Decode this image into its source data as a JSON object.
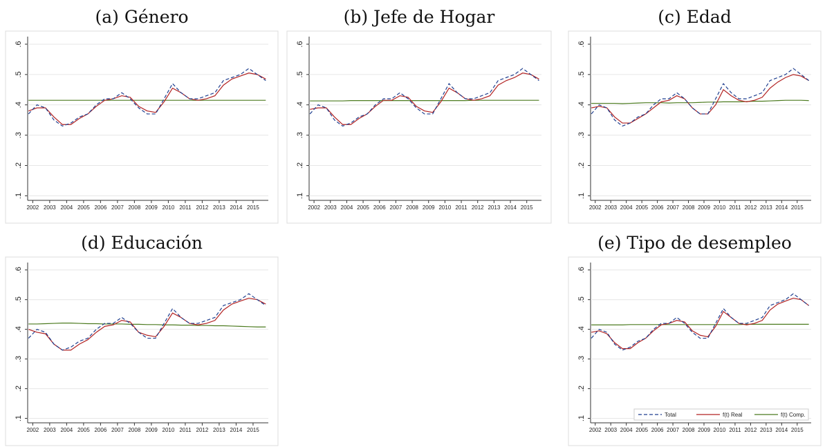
{
  "chart_data": [
    {
      "type": "line",
      "title": "(a) Género",
      "x": [
        2001.75,
        2002.25,
        2002.75,
        2003.25,
        2003.75,
        2004.25,
        2004.75,
        2005.25,
        2005.75,
        2006.25,
        2006.75,
        2007.25,
        2007.75,
        2008.25,
        2008.75,
        2009.25,
        2009.75,
        2010.25,
        2010.75,
        2011.25,
        2011.75,
        2012.25,
        2012.75,
        2013.25,
        2013.75,
        2014.25,
        2014.75,
        2015.25,
        2015.75
      ],
      "series": [
        {
          "name": "Total",
          "color": "#1f3f8f",
          "dash": true,
          "values": [
            0.37,
            0.4,
            0.39,
            0.35,
            0.33,
            0.34,
            0.36,
            0.37,
            0.4,
            0.42,
            0.42,
            0.44,
            0.42,
            0.39,
            0.37,
            0.37,
            0.42,
            0.47,
            0.44,
            0.42,
            0.42,
            0.43,
            0.44,
            0.48,
            0.49,
            0.5,
            0.52,
            0.5,
            0.48
          ]
        },
        {
          "name": "f(t) Real",
          "color": "#b22222",
          "dash": false,
          "values": [
            0.38,
            0.39,
            0.39,
            0.36,
            0.335,
            0.335,
            0.355,
            0.37,
            0.395,
            0.415,
            0.42,
            0.43,
            0.425,
            0.395,
            0.38,
            0.375,
            0.41,
            0.455,
            0.44,
            0.42,
            0.415,
            0.42,
            0.43,
            0.465,
            0.485,
            0.495,
            0.505,
            0.5,
            0.485
          ]
        },
        {
          "name": "f(t) Comp.",
          "color": "#4b7a1e",
          "dash": false,
          "values": [
            0.415,
            0.415,
            0.415,
            0.415,
            0.415,
            0.415,
            0.415,
            0.415,
            0.415,
            0.415,
            0.415,
            0.415,
            0.415,
            0.415,
            0.415,
            0.415,
            0.415,
            0.415,
            0.415,
            0.415,
            0.415,
            0.415,
            0.415,
            0.415,
            0.415,
            0.415,
            0.415,
            0.415,
            0.415
          ]
        }
      ],
      "xlim": [
        2001.7,
        2015.9
      ],
      "xticks": [
        2002,
        2003,
        2004,
        2005,
        2006,
        2007,
        2008,
        2009,
        2010,
        2011,
        2012,
        2013,
        2014,
        2015
      ],
      "ylim": [
        0.085,
        0.625
      ],
      "yticks": [
        {
          "value": 0.1,
          "label": ".1"
        },
        {
          "value": 0.2,
          "label": ".2"
        },
        {
          "value": 0.3,
          "label": ".3"
        },
        {
          "value": 0.4,
          "label": ".4"
        },
        {
          "value": 0.5,
          "label": ".5"
        },
        {
          "value": 0.6,
          "label": ".6"
        }
      ],
      "grid": true
    },
    {
      "type": "line",
      "title": "(b) Jefe de Hogar",
      "x": [
        2001.75,
        2002.25,
        2002.75,
        2003.25,
        2003.75,
        2004.25,
        2004.75,
        2005.25,
        2005.75,
        2006.25,
        2006.75,
        2007.25,
        2007.75,
        2008.25,
        2008.75,
        2009.25,
        2009.75,
        2010.25,
        2010.75,
        2011.25,
        2011.75,
        2012.25,
        2012.75,
        2013.25,
        2013.75,
        2014.25,
        2014.75,
        2015.25,
        2015.75
      ],
      "series": [
        {
          "name": "Total",
          "color": "#1f3f8f",
          "dash": true,
          "values": [
            0.37,
            0.4,
            0.39,
            0.35,
            0.33,
            0.34,
            0.36,
            0.37,
            0.4,
            0.42,
            0.42,
            0.44,
            0.42,
            0.39,
            0.37,
            0.37,
            0.42,
            0.47,
            0.44,
            0.42,
            0.42,
            0.43,
            0.44,
            0.48,
            0.49,
            0.5,
            0.52,
            0.5,
            0.48
          ]
        },
        {
          "name": "f(t) Real",
          "color": "#b22222",
          "dash": false,
          "values": [
            0.385,
            0.39,
            0.39,
            0.36,
            0.335,
            0.335,
            0.355,
            0.37,
            0.395,
            0.415,
            0.415,
            0.43,
            0.425,
            0.395,
            0.38,
            0.375,
            0.41,
            0.455,
            0.44,
            0.42,
            0.415,
            0.42,
            0.43,
            0.465,
            0.48,
            0.49,
            0.505,
            0.5,
            0.485
          ]
        },
        {
          "name": "f(t) Comp.",
          "color": "#4b7a1e",
          "dash": false,
          "values": [
            0.413,
            0.413,
            0.413,
            0.413,
            0.413,
            0.414,
            0.414,
            0.414,
            0.414,
            0.414,
            0.414,
            0.414,
            0.414,
            0.414,
            0.414,
            0.414,
            0.414,
            0.414,
            0.414,
            0.414,
            0.415,
            0.415,
            0.415,
            0.415,
            0.415,
            0.415,
            0.415,
            0.415,
            0.415
          ]
        }
      ],
      "xlim": [
        2001.7,
        2015.9
      ],
      "xticks": [
        2002,
        2003,
        2004,
        2005,
        2006,
        2007,
        2008,
        2009,
        2010,
        2011,
        2012,
        2013,
        2014,
        2015
      ],
      "ylim": [
        0.085,
        0.625
      ],
      "yticks": [
        {
          "value": 0.1,
          "label": ".1"
        },
        {
          "value": 0.2,
          "label": ".2"
        },
        {
          "value": 0.3,
          "label": ".3"
        },
        {
          "value": 0.4,
          "label": ".4"
        },
        {
          "value": 0.5,
          "label": ".5"
        },
        {
          "value": 0.6,
          "label": ".6"
        }
      ],
      "grid": true
    },
    {
      "type": "line",
      "title": "(c) Edad",
      "x": [
        2001.75,
        2002.25,
        2002.75,
        2003.25,
        2003.75,
        2004.25,
        2004.75,
        2005.25,
        2005.75,
        2006.25,
        2006.75,
        2007.25,
        2007.75,
        2008.25,
        2008.75,
        2009.25,
        2009.75,
        2010.25,
        2010.75,
        2011.25,
        2011.75,
        2012.25,
        2012.75,
        2013.25,
        2013.75,
        2014.25,
        2014.75,
        2015.25,
        2015.75
      ],
      "series": [
        {
          "name": "Total",
          "color": "#1f3f8f",
          "dash": true,
          "values": [
            0.37,
            0.4,
            0.39,
            0.35,
            0.33,
            0.34,
            0.36,
            0.37,
            0.4,
            0.42,
            0.42,
            0.44,
            0.42,
            0.39,
            0.37,
            0.37,
            0.42,
            0.47,
            0.44,
            0.42,
            0.42,
            0.43,
            0.44,
            0.48,
            0.49,
            0.5,
            0.52,
            0.5,
            0.48
          ]
        },
        {
          "name": "f(t) Real",
          "color": "#b22222",
          "dash": false,
          "values": [
            0.39,
            0.395,
            0.39,
            0.36,
            0.34,
            0.34,
            0.355,
            0.37,
            0.39,
            0.41,
            0.415,
            0.43,
            0.42,
            0.39,
            0.37,
            0.37,
            0.4,
            0.45,
            0.43,
            0.415,
            0.41,
            0.415,
            0.425,
            0.455,
            0.475,
            0.49,
            0.5,
            0.495,
            0.48
          ]
        },
        {
          "name": "f(t) Comp.",
          "color": "#4b7a1e",
          "dash": false,
          "values": [
            0.405,
            0.405,
            0.405,
            0.405,
            0.404,
            0.405,
            0.406,
            0.407,
            0.407,
            0.407,
            0.406,
            0.407,
            0.407,
            0.407,
            0.408,
            0.409,
            0.409,
            0.41,
            0.41,
            0.41,
            0.411,
            0.412,
            0.412,
            0.413,
            0.414,
            0.415,
            0.415,
            0.415,
            0.414
          ]
        }
      ],
      "xlim": [
        2001.7,
        2015.9
      ],
      "xticks": [
        2002,
        2003,
        2004,
        2005,
        2006,
        2007,
        2008,
        2009,
        2010,
        2011,
        2012,
        2013,
        2014,
        2015
      ],
      "ylim": [
        0.085,
        0.625
      ],
      "yticks": [
        {
          "value": 0.1,
          "label": ".1"
        },
        {
          "value": 0.2,
          "label": ".2"
        },
        {
          "value": 0.3,
          "label": ".3"
        },
        {
          "value": 0.4,
          "label": ".4"
        },
        {
          "value": 0.5,
          "label": ".5"
        },
        {
          "value": 0.6,
          "label": ".6"
        }
      ],
      "grid": true
    },
    {
      "type": "line",
      "title": "(d) Educación",
      "x": [
        2001.75,
        2002.25,
        2002.75,
        2003.25,
        2003.75,
        2004.25,
        2004.75,
        2005.25,
        2005.75,
        2006.25,
        2006.75,
        2007.25,
        2007.75,
        2008.25,
        2008.75,
        2009.25,
        2009.75,
        2010.25,
        2010.75,
        2011.25,
        2011.75,
        2012.25,
        2012.75,
        2013.25,
        2013.75,
        2014.25,
        2014.75,
        2015.25,
        2015.75
      ],
      "series": [
        {
          "name": "Total",
          "color": "#1f3f8f",
          "dash": true,
          "values": [
            0.37,
            0.4,
            0.39,
            0.35,
            0.33,
            0.34,
            0.36,
            0.37,
            0.4,
            0.42,
            0.42,
            0.44,
            0.42,
            0.39,
            0.37,
            0.37,
            0.42,
            0.47,
            0.44,
            0.42,
            0.42,
            0.43,
            0.44,
            0.48,
            0.49,
            0.5,
            0.52,
            0.5,
            0.48
          ]
        },
        {
          "name": "f(t) Real",
          "color": "#b22222",
          "dash": false,
          "values": [
            0.4,
            0.39,
            0.385,
            0.35,
            0.33,
            0.33,
            0.35,
            0.365,
            0.39,
            0.41,
            0.415,
            0.43,
            0.425,
            0.39,
            0.38,
            0.375,
            0.41,
            0.455,
            0.44,
            0.42,
            0.415,
            0.42,
            0.43,
            0.465,
            0.485,
            0.495,
            0.505,
            0.5,
            0.485
          ]
        },
        {
          "name": "f(t) Comp.",
          "color": "#4b7a1e",
          "dash": false,
          "values": [
            0.418,
            0.418,
            0.419,
            0.42,
            0.421,
            0.421,
            0.42,
            0.419,
            0.419,
            0.418,
            0.418,
            0.418,
            0.417,
            0.417,
            0.416,
            0.416,
            0.415,
            0.415,
            0.414,
            0.414,
            0.413,
            0.413,
            0.412,
            0.412,
            0.411,
            0.41,
            0.409,
            0.408,
            0.408
          ]
        }
      ],
      "xlim": [
        2001.7,
        2015.9
      ],
      "xticks": [
        2002,
        2003,
        2004,
        2005,
        2006,
        2007,
        2008,
        2009,
        2010,
        2011,
        2012,
        2013,
        2014,
        2015
      ],
      "ylim": [
        0.085,
        0.625
      ],
      "yticks": [
        {
          "value": 0.1,
          "label": ".1"
        },
        {
          "value": 0.2,
          "label": ".2"
        },
        {
          "value": 0.3,
          "label": ".3"
        },
        {
          "value": 0.4,
          "label": ".4"
        },
        {
          "value": 0.5,
          "label": ".5"
        },
        {
          "value": 0.6,
          "label": ".6"
        }
      ],
      "grid": true
    },
    {
      "type": "line",
      "title": "(e) Tipo de desempleo",
      "x": [
        2001.75,
        2002.25,
        2002.75,
        2003.25,
        2003.75,
        2004.25,
        2004.75,
        2005.25,
        2005.75,
        2006.25,
        2006.75,
        2007.25,
        2007.75,
        2008.25,
        2008.75,
        2009.25,
        2009.75,
        2010.25,
        2010.75,
        2011.25,
        2011.75,
        2012.25,
        2012.75,
        2013.25,
        2013.75,
        2014.25,
        2014.75,
        2015.25,
        2015.75
      ],
      "series": [
        {
          "name": "Total",
          "color": "#1f3f8f",
          "dash": true,
          "values": [
            0.37,
            0.4,
            0.39,
            0.35,
            0.33,
            0.34,
            0.36,
            0.37,
            0.4,
            0.42,
            0.42,
            0.44,
            0.42,
            0.39,
            0.37,
            0.37,
            0.42,
            0.47,
            0.44,
            0.42,
            0.42,
            0.43,
            0.44,
            0.48,
            0.49,
            0.5,
            0.52,
            0.5,
            0.48
          ]
        },
        {
          "name": "f(t) Real",
          "color": "#b22222",
          "dash": false,
          "values": [
            0.39,
            0.395,
            0.385,
            0.355,
            0.335,
            0.335,
            0.355,
            0.37,
            0.395,
            0.415,
            0.42,
            0.43,
            0.425,
            0.395,
            0.38,
            0.375,
            0.41,
            0.46,
            0.44,
            0.42,
            0.415,
            0.42,
            0.43,
            0.465,
            0.485,
            0.495,
            0.505,
            0.5,
            0.48
          ]
        },
        {
          "name": "f(t) Comp.",
          "color": "#4b7a1e",
          "dash": false,
          "values": [
            0.415,
            0.415,
            0.415,
            0.415,
            0.415,
            0.416,
            0.416,
            0.416,
            0.416,
            0.416,
            0.416,
            0.416,
            0.416,
            0.416,
            0.416,
            0.416,
            0.416,
            0.416,
            0.416,
            0.416,
            0.417,
            0.417,
            0.417,
            0.417,
            0.417,
            0.417,
            0.417,
            0.417,
            0.417
          ]
        }
      ],
      "xlim": [
        2001.7,
        2015.9
      ],
      "xticks": [
        2002,
        2003,
        2004,
        2005,
        2006,
        2007,
        2008,
        2009,
        2010,
        2011,
        2012,
        2013,
        2014,
        2015
      ],
      "ylim": [
        0.085,
        0.625
      ],
      "yticks": [
        {
          "value": 0.1,
          "label": ".1"
        },
        {
          "value": 0.2,
          "label": ".2"
        },
        {
          "value": 0.3,
          "label": ".3"
        },
        {
          "value": 0.4,
          "label": ".4"
        },
        {
          "value": 0.5,
          "label": ".5"
        },
        {
          "value": 0.6,
          "label": ".6"
        }
      ],
      "grid": true,
      "legend": "lower right"
    }
  ]
}
